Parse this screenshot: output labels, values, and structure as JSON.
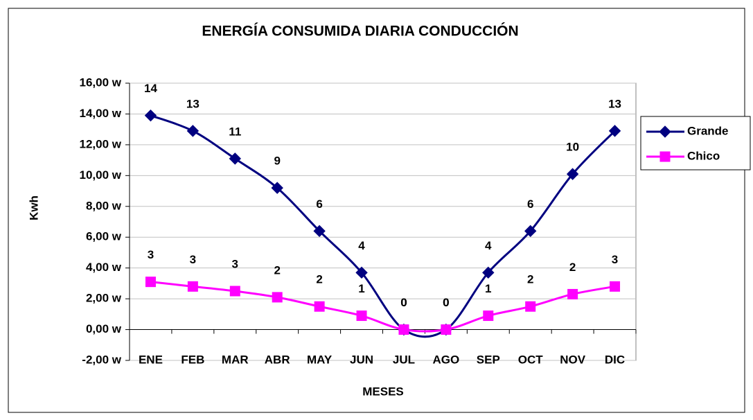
{
  "chart_data": {
    "type": "line",
    "title": "ENERGÍA CONSUMIDA DIARIA CONDUCCIÓN",
    "xlabel": "MESES",
    "ylabel": "Kwh",
    "categories": [
      "ENE",
      "FEB",
      "MAR",
      "ABR",
      "MAY",
      "JUN",
      "JUL",
      "AGO",
      "SEP",
      "OCT",
      "NOV",
      "DIC"
    ],
    "series": [
      {
        "name": "Grande",
        "color": "#000080",
        "marker": "diamond",
        "values": [
          13.9,
          12.9,
          11.1,
          9.2,
          6.4,
          3.7,
          0,
          0,
          3.7,
          6.4,
          10.1,
          12.9
        ],
        "value_labels": [
          "14",
          "13",
          "11",
          "9",
          "6",
          "4",
          "0",
          "0",
          "4",
          "6",
          "10",
          "13"
        ]
      },
      {
        "name": "Chico",
        "color": "#ff00ff",
        "marker": "square",
        "values": [
          3.1,
          2.8,
          2.5,
          2.1,
          1.5,
          0.9,
          0,
          0,
          0.9,
          1.5,
          2.3,
          2.8
        ],
        "value_labels": [
          "3",
          "3",
          "3",
          "2",
          "2",
          "1",
          "0",
          "0",
          "1",
          "2",
          "2",
          "3"
        ]
      }
    ],
    "ylim": [
      -2,
      16
    ],
    "yticks": [
      {
        "value": -2,
        "label": "-2,00 w"
      },
      {
        "value": 0,
        "label": "0,00 w"
      },
      {
        "value": 2,
        "label": "2,00 w"
      },
      {
        "value": 4,
        "label": "4,00 w"
      },
      {
        "value": 6,
        "label": "6,00 w"
      },
      {
        "value": 8,
        "label": "8,00 w"
      },
      {
        "value": 10,
        "label": "10,00 w"
      },
      {
        "value": 12,
        "label": "12,00 w"
      },
      {
        "value": 14,
        "label": "14,00 w"
      },
      {
        "value": 16,
        "label": "16,00 w"
      }
    ],
    "grid": true,
    "smooth": true,
    "legend": "right"
  }
}
